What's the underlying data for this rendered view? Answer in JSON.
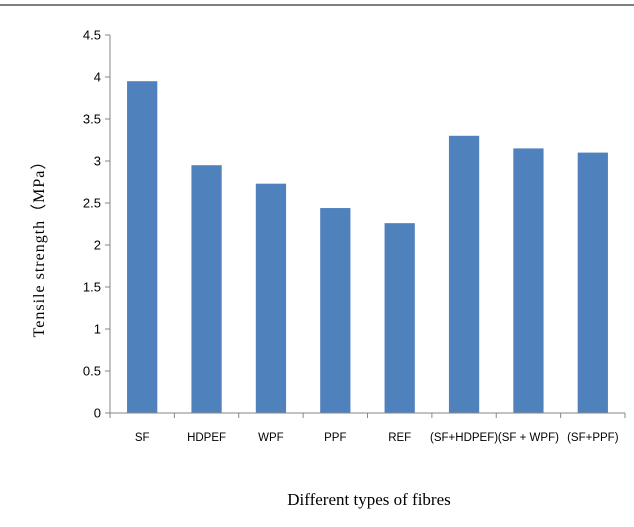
{
  "chart_data": {
    "type": "bar",
    "title": "",
    "xlabel": "Different types of fibres",
    "ylabel": "Tensile strength（MPa）",
    "categories": [
      "SF",
      "HDPEF",
      "WPF",
      "PPF",
      "REF",
      "(SF+HDPEF)",
      "(SF + WPF)",
      "(SF+PPF)"
    ],
    "values": [
      3.95,
      2.95,
      2.73,
      2.44,
      2.26,
      3.3,
      3.15,
      3.1
    ],
    "ylim": [
      0,
      4.5
    ],
    "yticks": [
      "0",
      "0.5",
      "1",
      "1.5",
      "2",
      "2.5",
      "3",
      "3.5",
      "4",
      "4.5"
    ],
    "grid": false,
    "legend": "none",
    "colors": {
      "bar": "#4f81bd",
      "axis": "#868686",
      "top_rule": "#7f7f7f"
    }
  }
}
